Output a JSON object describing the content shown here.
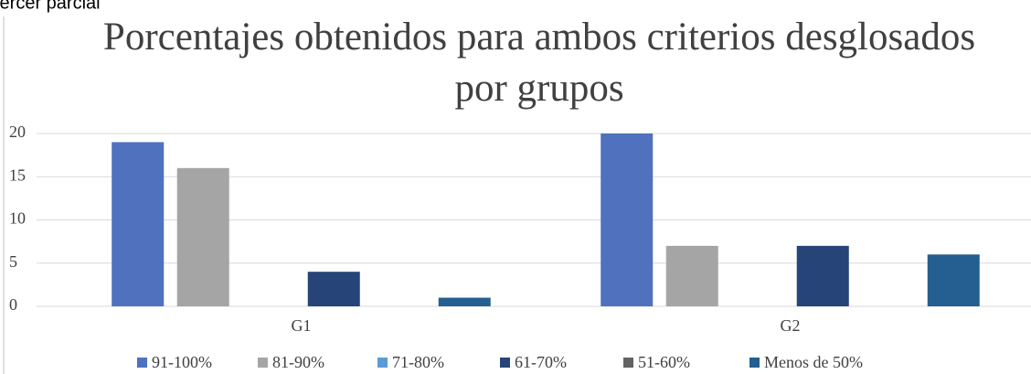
{
  "caption": "tercer parcial",
  "chart_data": {
    "type": "bar",
    "title": [
      "Porcentajes obtenidos para ambos criterios desglosados",
      "por grupos"
    ],
    "categories": [
      "G1",
      "G2"
    ],
    "series": [
      {
        "name": "91-100%",
        "color": "#4f71be",
        "values": [
          19,
          20
        ]
      },
      {
        "name": "81-90%",
        "color": "#a5a5a5",
        "values": [
          16,
          7
        ]
      },
      {
        "name": "71-80%",
        "color": "#5b9bd5",
        "values": [
          0,
          0
        ]
      },
      {
        "name": "61-70%",
        "color": "#264478",
        "values": [
          4,
          7
        ]
      },
      {
        "name": "51-60%",
        "color": "#636363",
        "values": [
          0,
          0
        ]
      },
      {
        "name": "Menos de 50%",
        "color": "#255e91",
        "values": [
          1,
          6
        ]
      }
    ],
    "ylim": [
      0,
      20
    ],
    "yticks": [
      0,
      5,
      10,
      15,
      20
    ],
    "grid": true,
    "legend": "bottom"
  }
}
